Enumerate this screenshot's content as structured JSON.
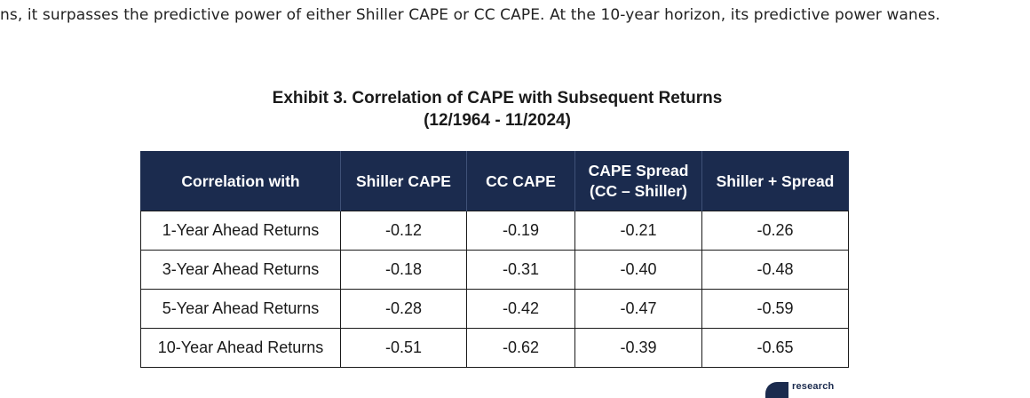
{
  "intro_text": "ns, it surpasses the predictive power of either Shiller CAPE or CC CAPE. At the 10-year horizon, its predictive power wanes.",
  "exhibit": {
    "title_line1": "Exhibit 3. Correlation of CAPE with Subsequent Returns",
    "title_line2": "(12/1964 - 11/2024)"
  },
  "table": {
    "headers": [
      {
        "line1": "Correlation with",
        "line2": ""
      },
      {
        "line1": "Shiller CAPE",
        "line2": ""
      },
      {
        "line1": "CC CAPE",
        "line2": ""
      },
      {
        "line1": "CAPE Spread",
        "line2": "(CC – Shiller)"
      },
      {
        "line1": "Shiller + Spread",
        "line2": ""
      }
    ],
    "rows": [
      {
        "label": "1-Year Ahead Returns",
        "values": [
          "-0.12",
          "-0.19",
          "-0.21",
          "-0.26"
        ]
      },
      {
        "label": "3-Year Ahead Returns",
        "values": [
          "-0.18",
          "-0.31",
          "-0.40",
          "-0.48"
        ]
      },
      {
        "label": "5-Year Ahead Returns",
        "values": [
          "-0.28",
          "-0.42",
          "-0.47",
          "-0.59"
        ]
      },
      {
        "label": "10-Year Ahead Returns",
        "values": [
          "-0.51",
          "-0.62",
          "-0.39",
          "-0.65"
        ]
      }
    ]
  },
  "logo": {
    "text": "research",
    "color": "#1b2b4e"
  },
  "colors": {
    "header_background": "#1b2b4e",
    "header_text": "#ffffff",
    "border": "#1a1a1a"
  }
}
